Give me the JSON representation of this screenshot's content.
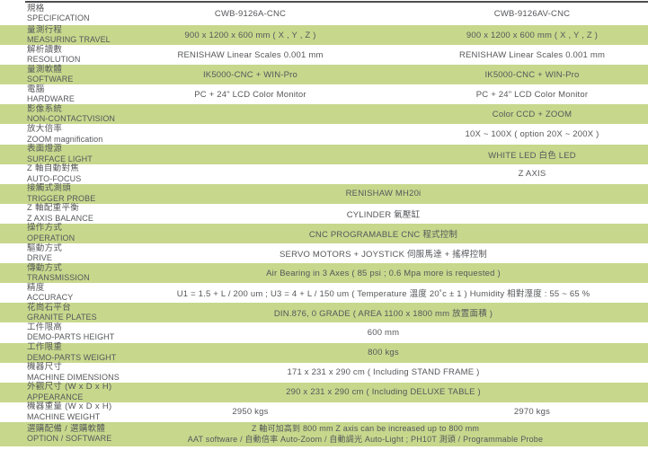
{
  "page": {
    "accent_green": "#c7d88d",
    "text_color": "#56575a",
    "top_line_color": "#4e4e4e"
  },
  "header": {
    "label_zh": "規格",
    "label_en": "SPECIFICATION",
    "model_a": "CWB-9126A-CNC",
    "model_b": "CWB-9126AV-CNC"
  },
  "rows": [
    {
      "zh": "量測行程",
      "en": "MEASURING TRAVEL",
      "type": "double",
      "a": "900 x 1200 x 600 mm ( X , Y , Z )",
      "b": "900 x 1200 x 600 mm ( X , Y , Z )"
    },
    {
      "zh": "解析讀數",
      "en": "RESOLUTION",
      "type": "double",
      "a": "RENISHAW Linear Scales 0.001 mm",
      "b": "RENISHAW Linear Scales 0.001 mm"
    },
    {
      "zh": "量測軟體",
      "en": "SOFTWARE",
      "type": "double",
      "a": "IK5000-CNC + WIN-Pro",
      "b": "IK5000-CNC + WIN-Pro"
    },
    {
      "zh": "電腦",
      "en": "HARDWARE",
      "type": "double",
      "a": "PC + 24\" LCD Color Monitor",
      "b": "PC + 24\" LCD Color Monitor"
    },
    {
      "zh": "影像系統",
      "en": "NON-CONTACTVISION",
      "type": "right",
      "b": "Color CCD + ZOOM"
    },
    {
      "zh": "放大倍率",
      "en": "ZOOM magnification",
      "type": "right",
      "b": "10X ~ 100X ( option 20X ~ 200X )"
    },
    {
      "zh": "表面燈源",
      "en": "SURFACE LIGHT",
      "type": "right",
      "b": "WHITE LED 白色 LED"
    },
    {
      "zh": "Z 軸自動對焦",
      "en": "AUTO-FOCUS",
      "type": "right",
      "b": "Z AXIS"
    },
    {
      "zh": "接觸式測頭",
      "en": "TRIGGER PROBE",
      "type": "span",
      "value": "RENISHAW MH20i"
    },
    {
      "zh": "Z 軸配重平衡",
      "en": "Z AXIS BALANCE",
      "type": "span",
      "value": "CYLINDER 氣壓缸"
    },
    {
      "zh": "操作方式",
      "en": "OPERATION",
      "type": "span",
      "value": "CNC PROGRAMABLE CNC 程式控制"
    },
    {
      "zh": "驅動方式",
      "en": "DRIVE",
      "type": "span",
      "value": "SERVO MOTORS + JOYSTICK 伺服馬達 + 搖桿控制"
    },
    {
      "zh": "傳動方式",
      "en": "TRANSMISSION",
      "type": "span",
      "value": "Air Bearing in 3 Axes ( 85 psi ; 0.6 Mpa more is requested )"
    },
    {
      "zh": "精度",
      "en": "ACCURACY",
      "type": "span",
      "value": "U1 = 1.5 + L / 200 um ; U3 = 4 + L / 150 um ( Temperature 溫度 20˚c ± 1 ) Humidity 相對溼度 : 55 ~ 65 %"
    },
    {
      "zh": "花崗石平台",
      "en": "GRANITE PLATES",
      "type": "span",
      "value": "DIN.876, 0 GRADE ( AREA 1100 x 1800 mm 放置面積 )"
    },
    {
      "zh": "工件限高",
      "en": "DEMO-PARTS HEIGHT",
      "type": "span",
      "value": "600 mm"
    },
    {
      "zh": "工作限重",
      "en": "DEMO-PARTS WEIGHT",
      "type": "span",
      "value": "800 kgs"
    },
    {
      "zh": "機器尺寸",
      "en": "MACHINE DIMENSIONS",
      "type": "span",
      "value": "171 x 231 x 290 cm ( Including STAND FRAME )"
    },
    {
      "zh": "外觀尺寸 (W x D x H)",
      "en": "APPEARANCE",
      "type": "span",
      "value": "290 x 231 x 290 cm ( Including DELUXE TABLE )"
    },
    {
      "zh": "機器重量 (W x D x H)",
      "en": "MACHINE WEIGHT",
      "type": "double",
      "a": "2950 kgs",
      "b": "2970 kgs"
    },
    {
      "zh": "選購配備 / 選購軟體",
      "en": "OPTION / SOFTWARE",
      "type": "span2",
      "lines": [
        "Z 軸可加高到 800 mm Z axis can be increased up to 800 mm",
        "AAT software / 自動倍率 Auto-Zoom / 自動調光 Auto-Light ; PH10T 測頭 / Programmable Probe"
      ]
    }
  ]
}
